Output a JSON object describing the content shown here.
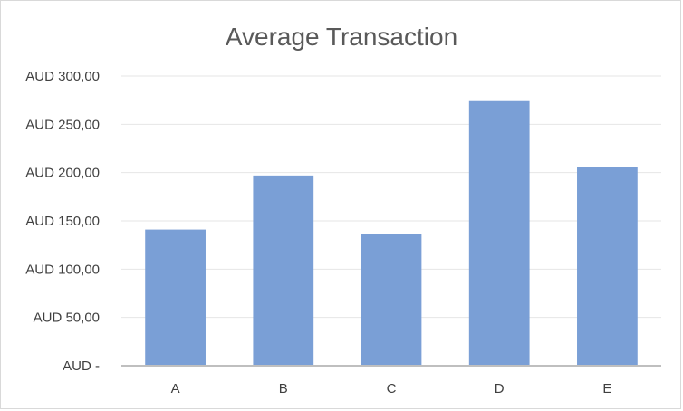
{
  "chart_data": {
    "type": "bar",
    "title": "Average Transaction",
    "xlabel": "",
    "ylabel": "",
    "categories": [
      "A",
      "B",
      "C",
      "D",
      "E"
    ],
    "values": [
      141,
      197,
      136,
      274,
      206
    ],
    "ylim": [
      0,
      300
    ],
    "yticks": [
      0,
      50,
      100,
      150,
      200,
      250,
      300
    ],
    "ytick_labels": [
      "AUD -",
      "AUD 50,00",
      "AUD 100,00",
      "AUD 150,00",
      "AUD 200,00",
      "AUD 250,00",
      "AUD 300,00"
    ],
    "grid": true,
    "legend": "none",
    "bar_color": "#7a9fd6",
    "gridline_color": "#e6e6e6",
    "axis_color": "#bfbfbf"
  }
}
